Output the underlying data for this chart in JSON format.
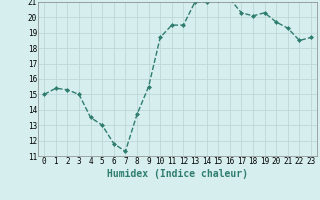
{
  "x": [
    0,
    1,
    2,
    3,
    4,
    5,
    6,
    7,
    8,
    9,
    10,
    11,
    12,
    13,
    14,
    15,
    16,
    17,
    18,
    19,
    20,
    21,
    22,
    23
  ],
  "y": [
    15.0,
    15.4,
    15.3,
    15.0,
    13.5,
    13.0,
    11.8,
    11.3,
    13.7,
    15.5,
    18.7,
    19.5,
    19.5,
    21.0,
    21.0,
    21.1,
    21.2,
    20.3,
    20.1,
    20.3,
    19.7,
    19.3,
    18.5,
    18.7
  ],
  "xlabel": "Humidex (Indice chaleur)",
  "xlim": [
    -0.5,
    23.5
  ],
  "ylim": [
    11,
    21
  ],
  "yticks": [
    11,
    12,
    13,
    14,
    15,
    16,
    17,
    18,
    19,
    20,
    21
  ],
  "xticks": [
    0,
    1,
    2,
    3,
    4,
    5,
    6,
    7,
    8,
    9,
    10,
    11,
    12,
    13,
    14,
    15,
    16,
    17,
    18,
    19,
    20,
    21,
    22,
    23
  ],
  "line_color": "#2e7d6e",
  "marker": "D",
  "marker_size": 2.0,
  "line_width": 1.0,
  "bg_color": "#d6eeee",
  "grid_color": "#b8d4d4",
  "axis_fontsize": 6.5,
  "tick_fontsize": 5.5,
  "xlabel_fontsize": 7.0
}
